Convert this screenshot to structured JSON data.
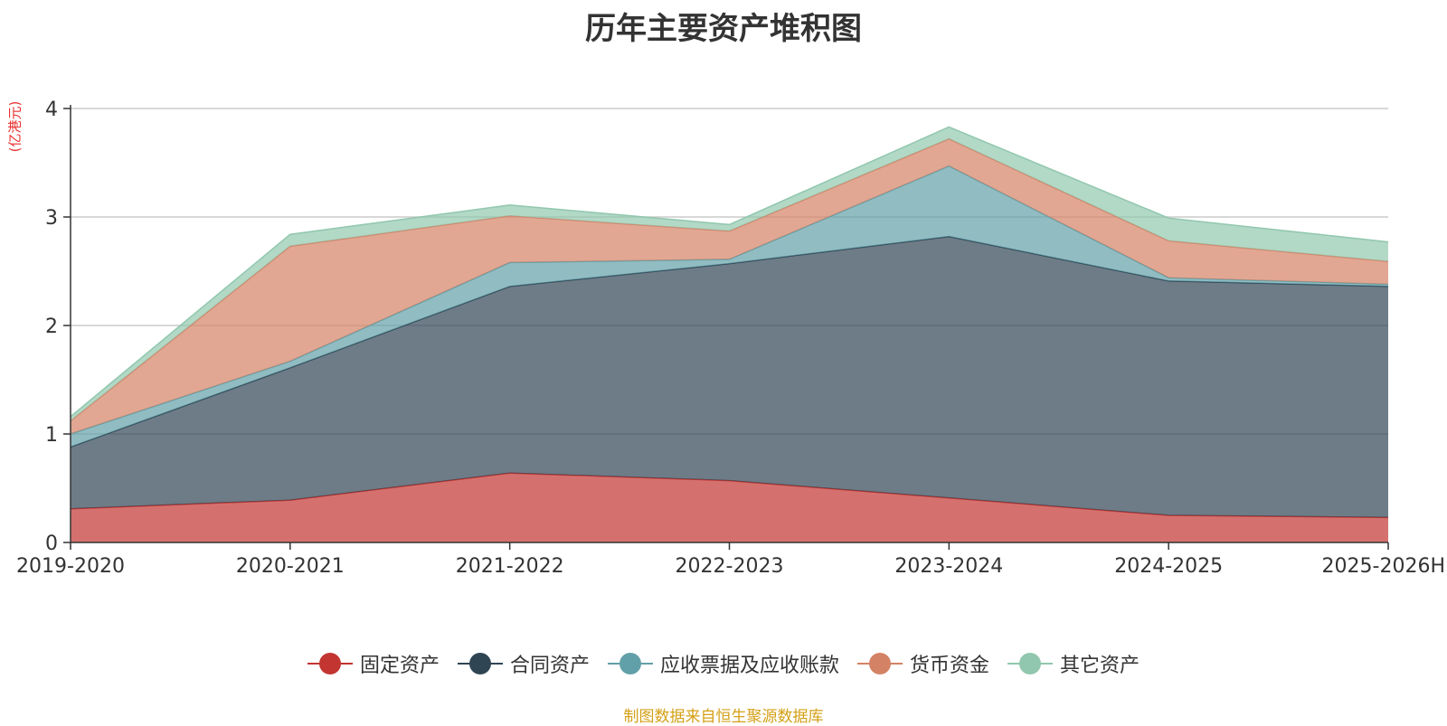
{
  "chart_data": {
    "type": "area",
    "stacked": true,
    "title": "历年主要资产堆积图",
    "ylabel": "(亿港元)",
    "xlabel": "",
    "categories": [
      "2019-2020",
      "2020-2021",
      "2021-2022",
      "2022-2023",
      "2023-2024",
      "2024-2025",
      "2025-2026H"
    ],
    "ylim": [
      0,
      4
    ],
    "yticks": [
      0,
      1,
      2,
      3,
      4
    ],
    "grid": true,
    "legend_position": "bottom",
    "series": [
      {
        "name": "固定资产",
        "color": "#c23531",
        "values": [
          0.31,
          0.39,
          0.64,
          0.57,
          0.41,
          0.25,
          0.23
        ]
      },
      {
        "name": "合同资产",
        "color": "#2f4554",
        "values": [
          0.57,
          1.22,
          1.72,
          2.0,
          2.41,
          2.16,
          2.13
        ]
      },
      {
        "name": "应收票据及应收账款",
        "color": "#61a0a8",
        "values": [
          0.12,
          0.06,
          0.22,
          0.04,
          0.65,
          0.03,
          0.02
        ]
      },
      {
        "name": "货币资金",
        "color": "#d48265",
        "values": [
          0.12,
          1.06,
          0.43,
          0.26,
          0.25,
          0.34,
          0.21
        ]
      },
      {
        "name": "其它资产",
        "color": "#91c7ae",
        "values": [
          0.04,
          0.11,
          0.1,
          0.06,
          0.11,
          0.21,
          0.18
        ]
      }
    ]
  },
  "source_note": "制图数据来自恒生聚源数据库"
}
